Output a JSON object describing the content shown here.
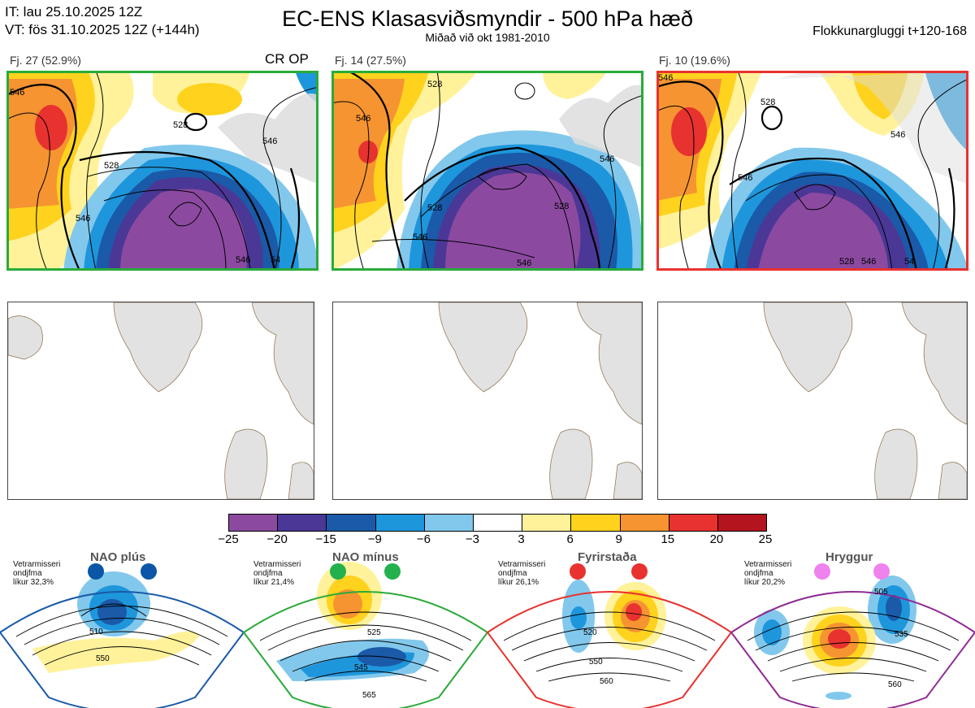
{
  "header": {
    "it_line": "IT: lau 25.10.2025 12Z",
    "vt_line": "VT: fös 31.10.2025 12Z  (+144h)",
    "title": "EC-ENS Klasasviðsmyndir - 500 hPa hæð",
    "subtitle": "Miðað við okt 1981-2010",
    "window": "Flokkunargluggi t+120-168"
  },
  "clusters": [
    {
      "label": "Fj. 27 (52.9%)",
      "tag": "CR OP",
      "border_color": "#2aaa3a"
    },
    {
      "label": "Fj. 14 (27.5%)",
      "tag": "",
      "border_color": "#2aaa3a"
    },
    {
      "label": "Fj. 10 (19.6%)",
      "tag": "",
      "border_color": "#e8322f"
    }
  ],
  "contour_labels": {
    "c1": [
      "546",
      "528",
      "546",
      "528",
      "546",
      "546",
      "54"
    ],
    "c2": [
      "546",
      "528",
      "528",
      "546",
      "528",
      "546",
      "546"
    ],
    "c3": [
      "546",
      "528",
      "546",
      "546",
      "528",
      "546",
      "54"
    ]
  },
  "colorbar": {
    "ticks": [
      "−25",
      "−20",
      "−15",
      "−9",
      "−6",
      "−3",
      "3",
      "6",
      "9",
      "15",
      "20",
      "25"
    ],
    "colors": [
      "#8b4aa0",
      "#4b3796",
      "#1a5aa8",
      "#1e96dc",
      "#82c8ec",
      "#ffffff",
      "#fff29a",
      "#ffd21e",
      "#f59431",
      "#e8322f",
      "#b4141e"
    ]
  },
  "regimes": [
    {
      "name": "NAO plús",
      "note": [
        "Vetrarmisseri",
        "ondjfma",
        "líkur 32,3%"
      ],
      "color": "#1a5aa8",
      "dot": "#0b56a6",
      "labels": [
        "510",
        "550"
      ]
    },
    {
      "name": "NAO mínus",
      "note": [
        "Vetrarmisseri",
        "ondjfma",
        "líkur 21,4%"
      ],
      "color": "#2aaa3a",
      "dot": "#22b14c",
      "labels": [
        "525",
        "545",
        "565"
      ]
    },
    {
      "name": "Fyrirstaða",
      "note": [
        "Vetrarmisseri",
        "ondjfma",
        "líkur 26,1%"
      ],
      "color": "#e8322f",
      "dot": "#e8322f",
      "labels": [
        "520",
        "550",
        "560"
      ]
    },
    {
      "name": "Hryggur",
      "note": [
        "Vetrarmisseri",
        "ondjfma",
        "líkur 20,2%"
      ],
      "color": "#8d2c93",
      "dot": "#ee82ee",
      "labels": [
        "505",
        "535",
        "560"
      ]
    }
  ]
}
